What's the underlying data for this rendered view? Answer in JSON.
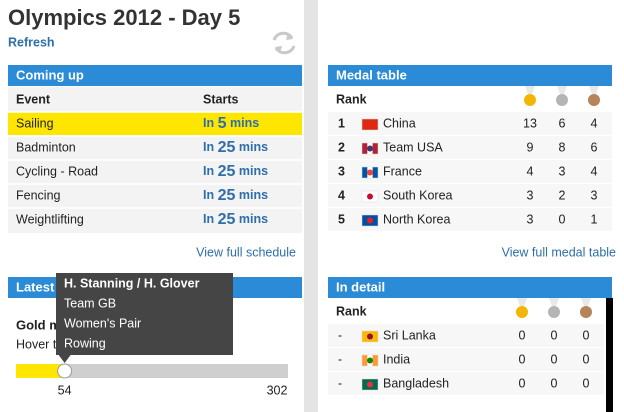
{
  "header": {
    "title": "Olympics 2012 - Day 5",
    "refresh": "Refresh"
  },
  "coming_up": {
    "title": "Coming up",
    "columns": [
      "Event",
      "Starts"
    ],
    "rows": [
      {
        "event": "Sailing",
        "starts": {
          "prefix": "In",
          "number": 5,
          "unit": "mins"
        }
      },
      {
        "event": "Badminton",
        "starts": {
          "prefix": "In",
          "number": 25,
          "unit": "mins"
        }
      },
      {
        "event": "Cycling - Road",
        "starts": {
          "prefix": "In",
          "number": 25,
          "unit": "mins"
        }
      },
      {
        "event": "Fencing",
        "starts": {
          "prefix": "In",
          "number": 25,
          "unit": "mins"
        }
      },
      {
        "event": "Weightlifting",
        "starts": {
          "prefix": "In",
          "number": 25,
          "unit": "mins"
        }
      }
    ],
    "link": "View full schedule"
  },
  "medal_table": {
    "title": "Medal table",
    "rank_header": "Rank",
    "rows": [
      {
        "rank": "1",
        "country": "China",
        "gold": 13,
        "silver": 6,
        "bronze": 4
      },
      {
        "rank": "2",
        "country": "Team USA",
        "gold": 9,
        "silver": 8,
        "bronze": 6
      },
      {
        "rank": "3",
        "country": "France",
        "gold": 4,
        "silver": 3,
        "bronze": 4
      },
      {
        "rank": "4",
        "country": "South Korea",
        "gold": 3,
        "silver": 2,
        "bronze": 3
      },
      {
        "rank": "5",
        "country": "North Korea",
        "gold": 3,
        "silver": 0,
        "bronze": 1
      }
    ],
    "link": "View full medal table"
  },
  "latest": {
    "title": "Latest",
    "heading": "Gold m",
    "hint": "Hover t",
    "slider": {
      "value": 54,
      "max": 302
    },
    "tooltip": [
      "H. Stanning / H. Glover",
      "Team GB",
      "Women's Pair",
      "Rowing"
    ]
  },
  "in_detail": {
    "title": "In detail",
    "rank_header": "Rank",
    "rows": [
      {
        "rank": "-",
        "country": "Sri Lanka",
        "gold": 0,
        "silver": 0,
        "bronze": 0
      },
      {
        "rank": "-",
        "country": "India",
        "gold": 0,
        "silver": 0,
        "bronze": 0
      },
      {
        "rank": "-",
        "country": "Bangladesh",
        "gold": 0,
        "silver": 0,
        "bronze": 0
      }
    ]
  }
}
